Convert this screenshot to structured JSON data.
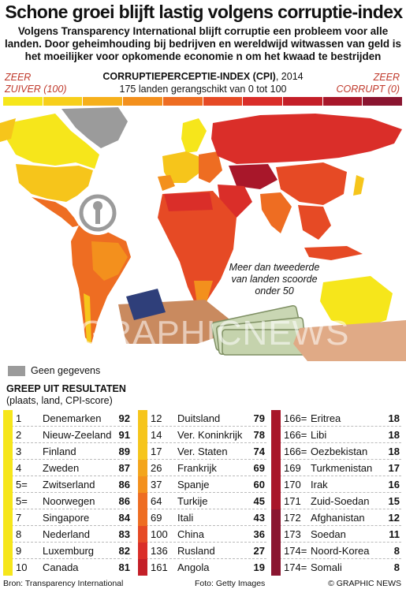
{
  "header": {
    "title": "Schone groei blijft lastig volgens corruptie-index",
    "subtitle": "Volgens Transparency International blijft corruptie een probleem voor alle landen. Door geheimhouding bij bedrijven en wereldwijd witwassen van geld is het moeilijker voor opkomende economie  n om het kwaad te bestrijden"
  },
  "legend": {
    "left_line1": "ZEER",
    "left_line2": "ZUIVER (100)",
    "right_line1": "ZEER",
    "right_line2": "CORRUPT (0)",
    "cpi_title": "CORRUPTIEPERCEPTIE-INDEX (CPI)",
    "cpi_year": ", 2014",
    "cpi_sub": "175 landen gerangschikt van 0 tot 100",
    "scale_colors": [
      "#f6e61b",
      "#f7cf1b",
      "#f6b01c",
      "#f3901d",
      "#ee6d22",
      "#e64a25",
      "#da2e29",
      "#c41f28",
      "#a8172a",
      "#8a1530"
    ]
  },
  "map": {
    "note": "Meer dan tweederde van landen scoorde onder 50",
    "nodata_label": "Geen gegevens",
    "nodata_color": "#9b9b9b",
    "watermark": "GRAPHICNEWS"
  },
  "results": {
    "title": "GREEP UIT RESULTATEN",
    "subtitle": "(plaats, land, CPI-score)"
  },
  "chart_data": {
    "type": "table",
    "title": "GREEP UIT RESULTATEN",
    "columns": [
      "plaats",
      "land",
      "CPI-score"
    ],
    "columns_groups": [
      [
        {
          "rank": "1",
          "country": "Denemarken",
          "score": 92,
          "color": "#f6e61b"
        },
        {
          "rank": "2",
          "country": "Nieuw-Zeeland",
          "score": 91,
          "color": "#f6e61b"
        },
        {
          "rank": "3",
          "country": "Finland",
          "score": 89,
          "color": "#f6e61b"
        },
        {
          "rank": "4",
          "country": "Zweden",
          "score": 87,
          "color": "#f6e61b"
        },
        {
          "rank": "5=",
          "country": "Zwitserland",
          "score": 86,
          "color": "#f6e61b"
        },
        {
          "rank": "5=",
          "country": "Noorwegen",
          "score": 86,
          "color": "#f6e61b"
        },
        {
          "rank": "7",
          "country": "Singapore",
          "score": 84,
          "color": "#f6e61b"
        },
        {
          "rank": "8",
          "country": "Nederland",
          "score": 83,
          "color": "#f6e61b"
        },
        {
          "rank": "9",
          "country": "Luxemburg",
          "score": 82,
          "color": "#f6e61b"
        },
        {
          "rank": "10",
          "country": "Canada",
          "score": 81,
          "color": "#f6e61b"
        }
      ],
      [
        {
          "rank": "12",
          "country": "Duitsland",
          "score": 79,
          "color": "#f6c51b"
        },
        {
          "rank": "14",
          "country": "Ver. Koninkrijk",
          "score": 78,
          "color": "#f6c51b"
        },
        {
          "rank": "17",
          "country": "Ver. Staten",
          "score": 74,
          "color": "#f6c51b"
        },
        {
          "rank": "26",
          "country": "Frankrijk",
          "score": 69,
          "color": "#f3a51c"
        },
        {
          "rank": "37",
          "country": "Spanje",
          "score": 60,
          "color": "#f3901d"
        },
        {
          "rank": "64",
          "country": "Turkije",
          "score": 45,
          "color": "#ee6d22"
        },
        {
          "rank": "69",
          "country": "Itali",
          "score": 43,
          "color": "#ee6d22"
        },
        {
          "rank": "100",
          "country": "China",
          "score": 36,
          "color": "#e64a25"
        },
        {
          "rank": "136",
          "country": "Rusland",
          "score": 27,
          "color": "#da2e29"
        },
        {
          "rank": "161",
          "country": "Angola",
          "score": 19,
          "color": "#c41f28"
        }
      ],
      [
        {
          "rank": "166=",
          "country": "Eritrea",
          "score": 18,
          "color": "#a8172a"
        },
        {
          "rank": "166=",
          "country": "Libi",
          "score": 18,
          "color": "#a8172a"
        },
        {
          "rank": "166=",
          "country": "Oezbekistan",
          "score": 18,
          "color": "#a8172a"
        },
        {
          "rank": "169",
          "country": "Turkmenistan",
          "score": 17,
          "color": "#a8172a"
        },
        {
          "rank": "170",
          "country": "Irak",
          "score": 16,
          "color": "#a8172a"
        },
        {
          "rank": "171",
          "country": "Zuid-Soedan",
          "score": 15,
          "color": "#a8172a"
        },
        {
          "rank": "172",
          "country": "Afghanistan",
          "score": 12,
          "color": "#8a1530"
        },
        {
          "rank": "173",
          "country": "Soedan",
          "score": 11,
          "color": "#8a1530"
        },
        {
          "rank": "174=",
          "country": "Noord-Korea",
          "score": 8,
          "color": "#8a1530"
        },
        {
          "rank": "174=",
          "country": "Somali",
          "score": 8,
          "color": "#8a1530"
        }
      ]
    ]
  },
  "footer": {
    "source": "Bron: Transparency International",
    "photo": "Foto: Getty Images",
    "credit": "© GRAPHIC NEWS"
  }
}
